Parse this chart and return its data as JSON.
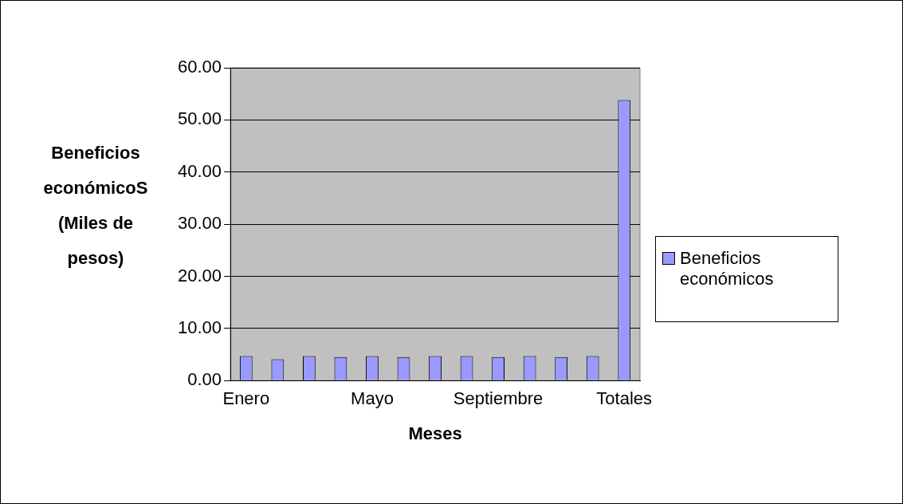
{
  "chart_data": {
    "type": "bar",
    "xlabel": "Meses",
    "ylabel": "Beneficios económicoS (Miles de pesos)",
    "categories": [
      "Enero",
      null,
      null,
      null,
      "Mayo",
      null,
      null,
      null,
      "Septiembre",
      null,
      null,
      null,
      "Totales"
    ],
    "series": [
      {
        "name": "Beneficios económicos",
        "color": "#9999ff",
        "values": [
          4.7,
          4.1,
          4.7,
          4.5,
          4.7,
          4.5,
          4.7,
          4.7,
          4.5,
          4.7,
          4.5,
          4.7,
          53.8
        ]
      }
    ],
    "ylim": [
      0,
      60
    ],
    "yticks": [
      {
        "value": 0,
        "label": "0.00"
      },
      {
        "value": 10,
        "label": "10.00"
      },
      {
        "value": 20,
        "label": "20.00"
      },
      {
        "value": 30,
        "label": "30.00"
      },
      {
        "value": 40,
        "label": "40.00"
      },
      {
        "value": 50,
        "label": "50.00"
      },
      {
        "value": 60,
        "label": "60.00"
      }
    ],
    "grid": "y",
    "legend": "right"
  }
}
